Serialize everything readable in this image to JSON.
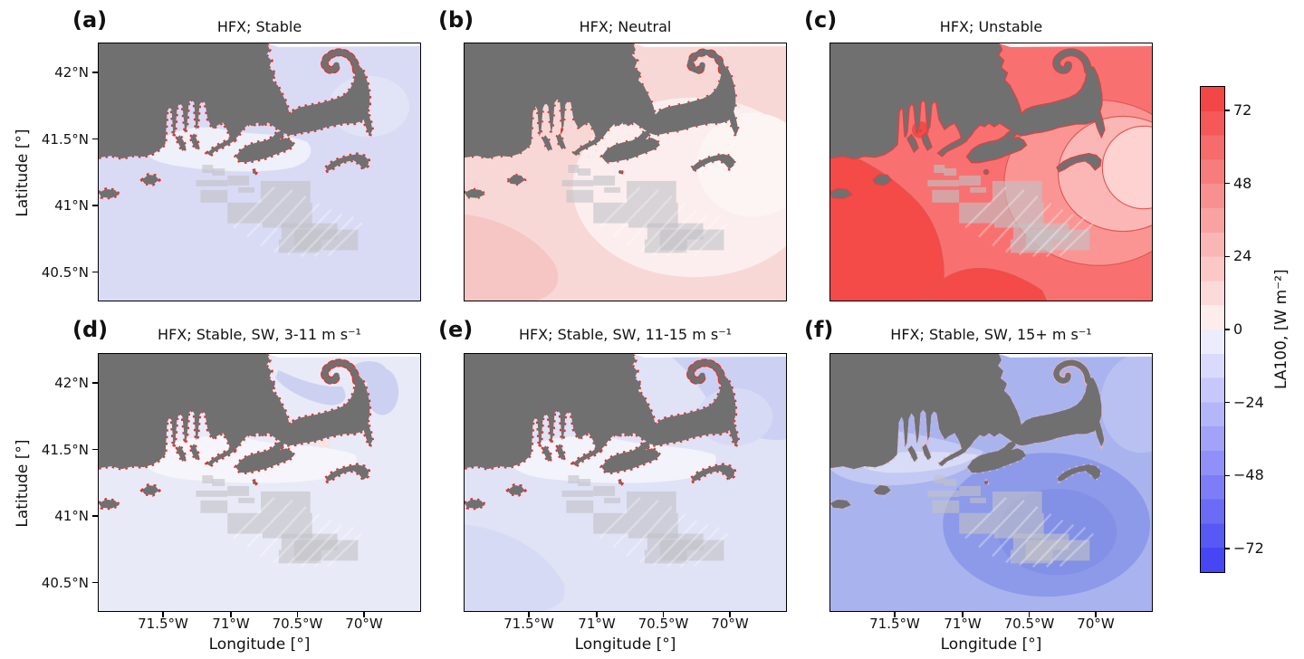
{
  "figure": {
    "background": "#ffffff",
    "land_color": "#707070",
    "lease_color": "#c1c1c6"
  },
  "axes": {
    "ylabel": "Latitude [°]",
    "xlabel": "Longitude [°]",
    "yticks": [
      "42°N",
      "41.5°N",
      "41°N",
      "40.5°N"
    ],
    "xticks": [
      "71.5°W",
      "71°W",
      "70.5°W",
      "70°W"
    ]
  },
  "panels": [
    {
      "id": "a",
      "label": "(a)",
      "title": "HFX; Stable",
      "palette": {
        "sea": "#d9dbf5",
        "b1": "#eef0fa",
        "b2": "#e1e3f7",
        "fr": "#ee2c25",
        "frd": "2.5 5",
        "frw": "3.5",
        "land": "#707070"
      }
    },
    {
      "id": "b",
      "label": "(b)",
      "title": "HFX; Neutral",
      "palette": {
        "sea": "#f8d8d7",
        "b1": "#fceeee",
        "b2": "#fdf4f4",
        "b3": "#f6c6c4",
        "fr": "#ee2c25",
        "frd": "2 9",
        "frw": "3",
        "land": "#707070"
      }
    },
    {
      "id": "c",
      "label": "(c)",
      "title": "HFX; Unstable",
      "palette": {
        "sea": "#f87170",
        "b1": "#f44a48",
        "b2": "#fa9593",
        "b3": "#fbb7b5",
        "b4": "#fdd2d0",
        "fr": "#d84543",
        "frd": "1 0",
        "frw": "2.5",
        "contour": "#e05553",
        "land": "#707070"
      }
    },
    {
      "id": "d",
      "label": "(d)",
      "title": "HFX; Stable, SW, 3-11 m s⁻¹",
      "palette": {
        "sea": "#e9eaf8",
        "b1": "#f5f5fb",
        "b2": "#ccd1f1",
        "b3": "#fbe3df",
        "fr": "#ee2c25",
        "frd": "2.5 5",
        "frw": "3.5",
        "land": "#707070"
      }
    },
    {
      "id": "e",
      "label": "(e)",
      "title": "HFX; Stable, SW, 11-15 m s⁻¹",
      "palette": {
        "sea": "#e0e2f6",
        "b1": "#f2f3fb",
        "b2": "#ccd1f3",
        "b3": "#d6daf5",
        "b4": "#d7daf4",
        "fr": "#ee2c25",
        "frd": "2.5 5",
        "frw": "3.5",
        "land": "#707070"
      }
    },
    {
      "id": "f",
      "label": "(f)",
      "title": "HFX; Stable, SW, 15+ m s⁻¹",
      "palette": {
        "sea": "#a9b3ee",
        "b1": "#c2c9f3",
        "b2": "#8d9ae9",
        "b3": "#8290e6",
        "b4": "#b9c1f2",
        "fr": "#f3aeb8",
        "frd": "2 6",
        "frw": "3",
        "land": "#707070"
      }
    }
  ],
  "colorbar": {
    "label": "LA100, [W m⁻²]",
    "vmin": -80,
    "vmax": 80,
    "ticks": [
      {
        "value": 72,
        "label": "72"
      },
      {
        "value": 48,
        "label": "48"
      },
      {
        "value": 24,
        "label": "24"
      },
      {
        "value": 0,
        "label": "0"
      },
      {
        "value": -24,
        "label": "−24"
      },
      {
        "value": -48,
        "label": "−48"
      },
      {
        "value": -72,
        "label": "−72"
      }
    ],
    "segment_colors_bottom_to_top": [
      "#4646f4",
      "#5858f5",
      "#6b6bf6",
      "#7d7df7",
      "#9090f8",
      "#a2a2f9",
      "#b5b5fa",
      "#c7c7fb",
      "#dadafc",
      "#ececfd",
      "#fdecec",
      "#fcdada",
      "#fbc7c7",
      "#fab5b5",
      "#f9a2a2",
      "#f89090",
      "#f77d7d",
      "#f66b6b",
      "#f55858",
      "#f44646"
    ]
  },
  "chart_data": {
    "type": "heatmap",
    "subtype": "filled-contour coastal maps, 2x3 panel grid with shared colorbar",
    "region": "Southern New England coast: Cape Cod, Martha's Vineyard, Nantucket, Buzzards Bay; offshore wind lease areas shaded gray south of the islands",
    "x": {
      "label": "Longitude [°]",
      "ticks": [
        -71.5,
        -71.0,
        -70.5,
        -70.0
      ],
      "range": [
        -72.0,
        -69.57
      ]
    },
    "y": {
      "label": "Latitude [°]",
      "ticks": [
        42.0,
        41.5,
        41.0,
        40.5
      ],
      "range": [
        40.28,
        42.22
      ]
    },
    "colorbar": {
      "label": "LA100, [W m⁻²]",
      "ticks": [
        72,
        48,
        24,
        0,
        -24,
        -48,
        -72
      ],
      "range": [
        -80,
        80
      ],
      "n_segments": 20,
      "colormap": "blue-white-red"
    },
    "panels": [
      {
        "label": "(a)",
        "title": "HFX; Stable",
        "approx_offshore_value_W_m2": -6,
        "approx_range_W_m2": [
          -8,
          0
        ],
        "pattern": "uniform light blue (slightly negative HFX) offshore; near-zero whitish band along coast and sounds; bright red positive fringes hugging all coastlines"
      },
      {
        "label": "(b)",
        "title": "HFX; Neutral",
        "approx_offshore_value_W_m2": 10,
        "approx_range_W_m2": [
          0,
          24
        ],
        "pattern": "light pink everywhere; near-white region east of the islands around Nantucket; slightly deeper pink in southwest corner; sparse red coastal spots"
      },
      {
        "label": "(c)",
        "title": "HFX; Unstable",
        "approx_offshore_value_W_m2": 55,
        "approx_range_W_m2": [
          24,
          80
        ],
        "pattern": "strong red; darkest red band in southwest/bottom, bands lighten northeastward to pale pink east of Nantucket; dark red contour lines; small closed contour near New Bedford"
      },
      {
        "label": "(d)",
        "title": "HFX; Stable, SW, 3-11 m s⁻¹",
        "approx_offshore_value_W_m2": -4,
        "approx_range_W_m2": [
          -8,
          0
        ],
        "pattern": "very pale lavender, near-white along the coast and sounds; pale blue patches in Cape Cod Bay; strong red coastal fringes"
      },
      {
        "label": "(e)",
        "title": "HFX; Stable, SW, 11-15 m s⁻¹",
        "approx_offshore_value_W_m2": -10,
        "approx_range_W_m2": [
          -16,
          0
        ],
        "pattern": "pale lavender with whitish coastal band; light blue band northeast of Cape Cod and in Cape Cod Bay; strong red coastal fringes"
      },
      {
        "label": "(f)",
        "title": "HFX; Stable, SW, 15+ m s⁻¹",
        "approx_offshore_value_W_m2": -35,
        "approx_range_W_m2": [
          -56,
          -16
        ],
        "pattern": "medium blue everywhere; darker blue blob centered on the wind lease areas and southeast; lighter periwinkle band along the mainland coast; small pink coastal spots"
      }
    ],
    "overlays": [
      "gray land mask",
      "light-gray offshore wind energy lease-area polygons with diagonal striping",
      "red coastal HFX hot spots"
    ]
  }
}
